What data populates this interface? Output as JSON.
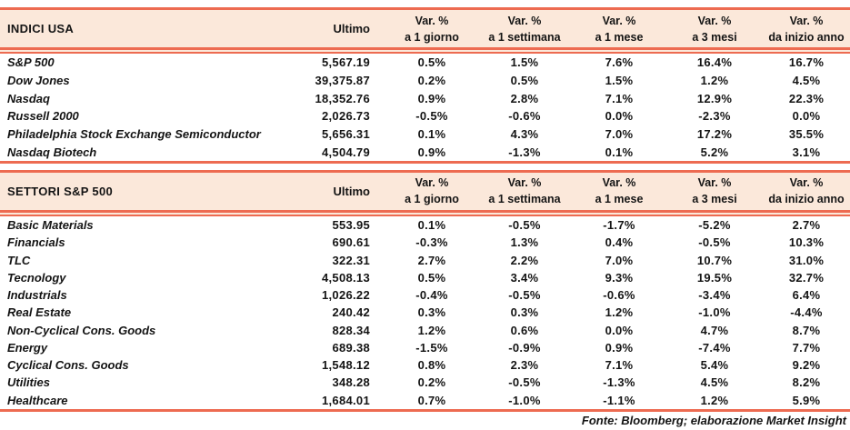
{
  "colors": {
    "accent": "#ED6B51",
    "header_bg": "#FBE8DA",
    "text": "#141414"
  },
  "columns": {
    "ultimo_label": "Ultimo",
    "var_headers": [
      {
        "line1": "Var. %",
        "line2": "a 1 giorno"
      },
      {
        "line1": "Var. %",
        "line2": "a 1 settimana"
      },
      {
        "line1": "Var. %",
        "line2": "a 1 mese"
      },
      {
        "line1": "Var. %",
        "line2": "a 3 mesi"
      },
      {
        "line1": "Var. %",
        "line2": "da inizio anno"
      }
    ]
  },
  "sections": [
    {
      "title": "INDICI USA",
      "rows": [
        {
          "name": "S&P 500",
          "ultimo": "5,567.19",
          "vars": [
            "0.5%",
            "1.5%",
            "7.6%",
            "16.4%",
            "16.7%"
          ]
        },
        {
          "name": "Dow Jones",
          "ultimo": "39,375.87",
          "vars": [
            "0.2%",
            "0.5%",
            "1.5%",
            "1.2%",
            "4.5%"
          ]
        },
        {
          "name": "Nasdaq",
          "ultimo": "18,352.76",
          "vars": [
            "0.9%",
            "2.8%",
            "7.1%",
            "12.9%",
            "22.3%"
          ]
        },
        {
          "name": "Russell 2000",
          "ultimo": "2,026.73",
          "vars": [
            "-0.5%",
            "-0.6%",
            "0.0%",
            "-2.3%",
            "0.0%"
          ]
        },
        {
          "name": "Philadelphia Stock Exchange Semiconductor",
          "ultimo": "5,656.31",
          "vars": [
            "0.1%",
            "4.3%",
            "7.0%",
            "17.2%",
            "35.5%"
          ]
        },
        {
          "name": "Nasdaq Biotech",
          "ultimo": "4,504.79",
          "vars": [
            "0.9%",
            "-1.3%",
            "0.1%",
            "5.2%",
            "3.1%"
          ]
        }
      ]
    },
    {
      "title": "SETTORI S&P 500",
      "rows": [
        {
          "name": "Basic Materials",
          "ultimo": "553.95",
          "vars": [
            "0.1%",
            "-0.5%",
            "-1.7%",
            "-5.2%",
            "2.7%"
          ]
        },
        {
          "name": "Financials",
          "ultimo": "690.61",
          "vars": [
            "-0.3%",
            "1.3%",
            "0.4%",
            "-0.5%",
            "10.3%"
          ]
        },
        {
          "name": "TLC",
          "ultimo": "322.31",
          "vars": [
            "2.7%",
            "2.2%",
            "7.0%",
            "10.7%",
            "31.0%"
          ]
        },
        {
          "name": "Tecnology",
          "ultimo": "4,508.13",
          "vars": [
            "0.5%",
            "3.4%",
            "9.3%",
            "19.5%",
            "32.7%"
          ]
        },
        {
          "name": "Industrials",
          "ultimo": "1,026.22",
          "vars": [
            "-0.4%",
            "-0.5%",
            "-0.6%",
            "-3.4%",
            "6.4%"
          ]
        },
        {
          "name": "Real Estate",
          "ultimo": "240.42",
          "vars": [
            "0.3%",
            "0.3%",
            "1.2%",
            "-1.0%",
            "-4.4%"
          ]
        },
        {
          "name": "Non-Cyclical Cons. Goods",
          "ultimo": "828.34",
          "vars": [
            "1.2%",
            "0.6%",
            "0.0%",
            "4.7%",
            "8.7%"
          ]
        },
        {
          "name": "Energy",
          "ultimo": "689.38",
          "vars": [
            "-1.5%",
            "-0.9%",
            "0.9%",
            "-7.4%",
            "7.7%"
          ]
        },
        {
          "name": "Cyclical Cons. Goods",
          "ultimo": "1,548.12",
          "vars": [
            "0.8%",
            "2.3%",
            "7.1%",
            "5.4%",
            "9.2%"
          ]
        },
        {
          "name": "Utilities",
          "ultimo": "348.28",
          "vars": [
            "0.2%",
            "-0.5%",
            "-1.3%",
            "4.5%",
            "8.2%"
          ]
        },
        {
          "name": "Healthcare",
          "ultimo": "1,684.01",
          "vars": [
            "0.7%",
            "-1.0%",
            "-1.1%",
            "1.2%",
            "5.9%"
          ]
        }
      ]
    }
  ],
  "footer": "Fonte: Bloomberg; elaborazione Market Insight"
}
